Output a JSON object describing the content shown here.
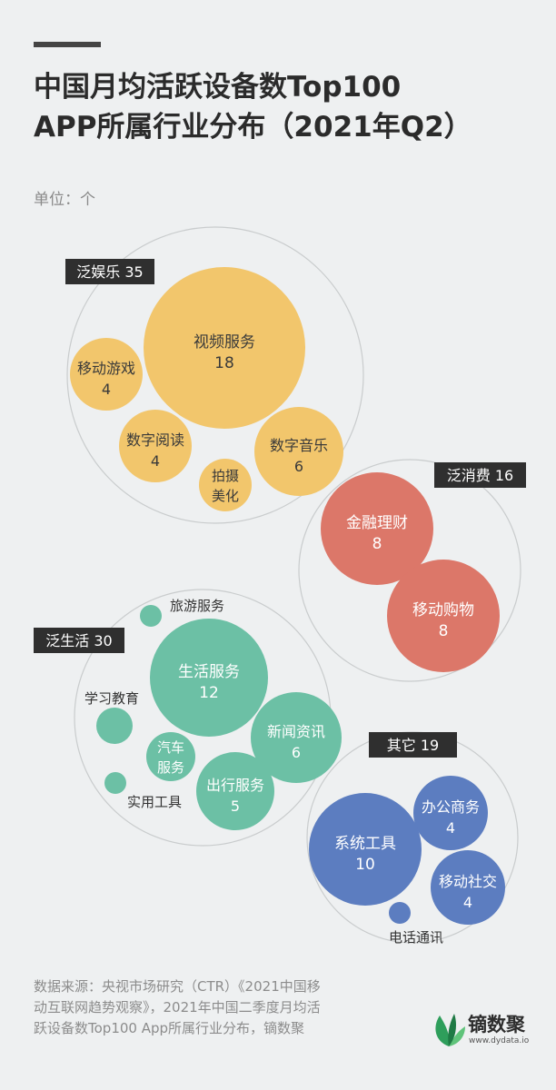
{
  "title_line1": "中国月均活跃设备数Top100",
  "title_line2": "APP所属行业分布（2021年Q2）",
  "unit": "单位：个",
  "source_lines": [
    "数据来源：央视市场研究（CTR）《2021中国移",
    "动互联网趋势观察》，2021年中国二季度月均活",
    "跃设备数Top100 App所属行业分布，镝数聚"
  ],
  "logo": {
    "name": "镝数聚",
    "url": "www.dydata.io"
  },
  "colors": {
    "background": "#eef0f1",
    "泛娱乐": "#f2c66c",
    "泛消费": "#dc7769",
    "泛生活": "#6cc0a5",
    "其它": "#5c7dc0",
    "group_label_bg": "#2f2f2f"
  },
  "chart_data": {
    "type": "packed-bubble",
    "unit": "个",
    "groups": [
      {
        "name": "泛娱乐",
        "value": 35,
        "color": "#f2c66c",
        "items": [
          {
            "name": "视频服务",
            "value": 18
          },
          {
            "name": "移动游戏",
            "value": 4
          },
          {
            "name": "数字阅读",
            "value": 4
          },
          {
            "name": "拍摄美化",
            "value": null
          },
          {
            "name": "数字音乐",
            "value": 6
          }
        ]
      },
      {
        "name": "泛消费",
        "value": 16,
        "color": "#dc7769",
        "items": [
          {
            "name": "金融理财",
            "value": 8
          },
          {
            "name": "移动购物",
            "value": 8
          }
        ]
      },
      {
        "name": "泛生活",
        "value": 30,
        "color": "#6cc0a5",
        "items": [
          {
            "name": "旅游服务",
            "value": null
          },
          {
            "name": "生活服务",
            "value": 12
          },
          {
            "name": "学习教育",
            "value": null
          },
          {
            "name": "新闻资讯",
            "value": 6
          },
          {
            "name": "汽车服务",
            "value": null
          },
          {
            "name": "实用工具",
            "value": null
          },
          {
            "name": "出行服务",
            "value": 5
          }
        ]
      },
      {
        "name": "其它",
        "value": 19,
        "color": "#5c7dc0",
        "items": [
          {
            "name": "办公商务",
            "value": 4
          },
          {
            "name": "系统工具",
            "value": 10
          },
          {
            "name": "移动社交",
            "value": 4
          },
          {
            "name": "电话通讯",
            "value": null
          }
        ]
      }
    ]
  }
}
